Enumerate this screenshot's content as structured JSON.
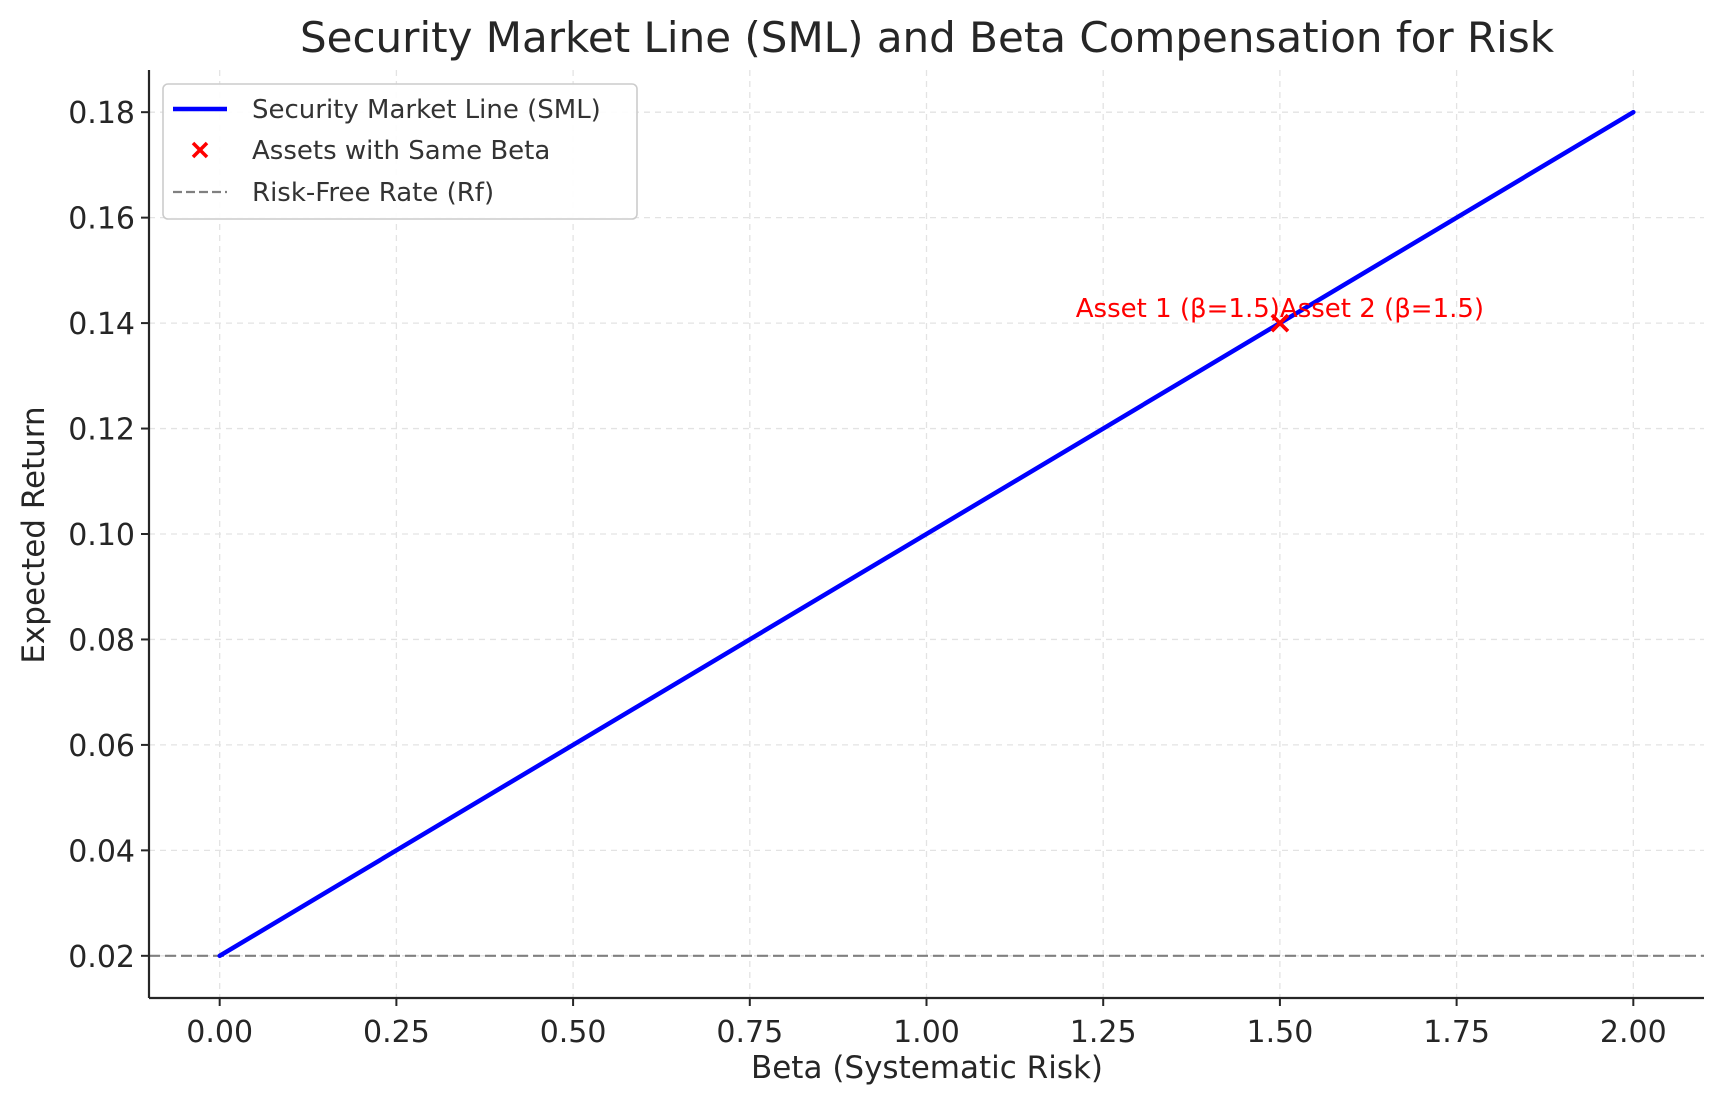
{
  "chart_data": {
    "type": "line",
    "title": "Security Market Line (SML) and Beta Compensation for Risk",
    "xlabel": "Beta (Systematic Risk)",
    "ylabel": "Expected Return",
    "xlim": [
      -0.1,
      2.1
    ],
    "ylim": [
      0.012,
      0.188
    ],
    "x_ticks": [
      0.0,
      0.25,
      0.5,
      0.75,
      1.0,
      1.25,
      1.5,
      1.75,
      2.0
    ],
    "x_tick_labels": [
      "0.00",
      "0.25",
      "0.50",
      "0.75",
      "1.00",
      "1.25",
      "1.50",
      "1.75",
      "2.00"
    ],
    "y_ticks": [
      0.02,
      0.04,
      0.06,
      0.08,
      0.1,
      0.12,
      0.14,
      0.16,
      0.18
    ],
    "y_tick_labels": [
      "0.02",
      "0.04",
      "0.06",
      "0.08",
      "0.10",
      "0.12",
      "0.14",
      "0.16",
      "0.18"
    ],
    "grid": true,
    "legend_position": "top-left",
    "series": [
      {
        "name": "Security Market Line (SML)",
        "kind": "line",
        "color": "#0000ff",
        "x": [
          0.0,
          2.0
        ],
        "y": [
          0.02,
          0.18
        ]
      },
      {
        "name": "Assets with Same Beta",
        "kind": "scatter",
        "marker": "x",
        "color": "#ff0000",
        "x": [
          1.5,
          1.5
        ],
        "y": [
          0.14,
          0.14
        ]
      },
      {
        "name": "Risk-Free Rate (Rf)",
        "kind": "hline",
        "style": "dashed",
        "color": "#808080",
        "y": 0.02
      }
    ],
    "annotations": [
      {
        "text": "Asset 1 (β=1.5)",
        "x": 1.5,
        "y": 0.14,
        "anchor": "end",
        "color": "#ff0000"
      },
      {
        "text": "Asset 2 (β=1.5)",
        "x": 1.5,
        "y": 0.14,
        "anchor": "start",
        "color": "#ff0000"
      }
    ]
  }
}
